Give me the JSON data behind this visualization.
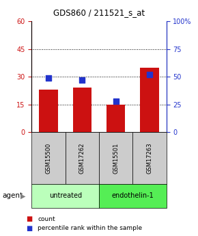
{
  "title": "GDS860 / 211521_s_at",
  "samples": [
    "GSM15500",
    "GSM17262",
    "GSM15501",
    "GSM17263"
  ],
  "groups": [
    "untreated",
    "untreated",
    "endothelin-1",
    "endothelin-1"
  ],
  "count_values": [
    23,
    24,
    15,
    35
  ],
  "percentile_values": [
    49,
    47,
    28,
    52
  ],
  "ylim_left": [
    0,
    60
  ],
  "ylim_right": [
    0,
    100
  ],
  "yticks_left": [
    0,
    15,
    30,
    45,
    60
  ],
  "yticks_right": [
    0,
    25,
    50,
    75,
    100
  ],
  "bar_color": "#cc1111",
  "dot_color": "#2233cc",
  "group_colors": {
    "untreated": "#bbffbb",
    "endothelin-1": "#55ee55"
  },
  "sample_box_color": "#cccccc",
  "left_tick_color": "#cc1111",
  "right_tick_color": "#2233cc",
  "bar_width": 0.55,
  "dot_size": 40,
  "grid_yticks": [
    15,
    30,
    45
  ],
  "agent_label": "agent",
  "legend_labels": [
    "count",
    "percentile rank within the sample"
  ],
  "legend_count_color": "#cc1111",
  "legend_dot_color": "#2233cc"
}
